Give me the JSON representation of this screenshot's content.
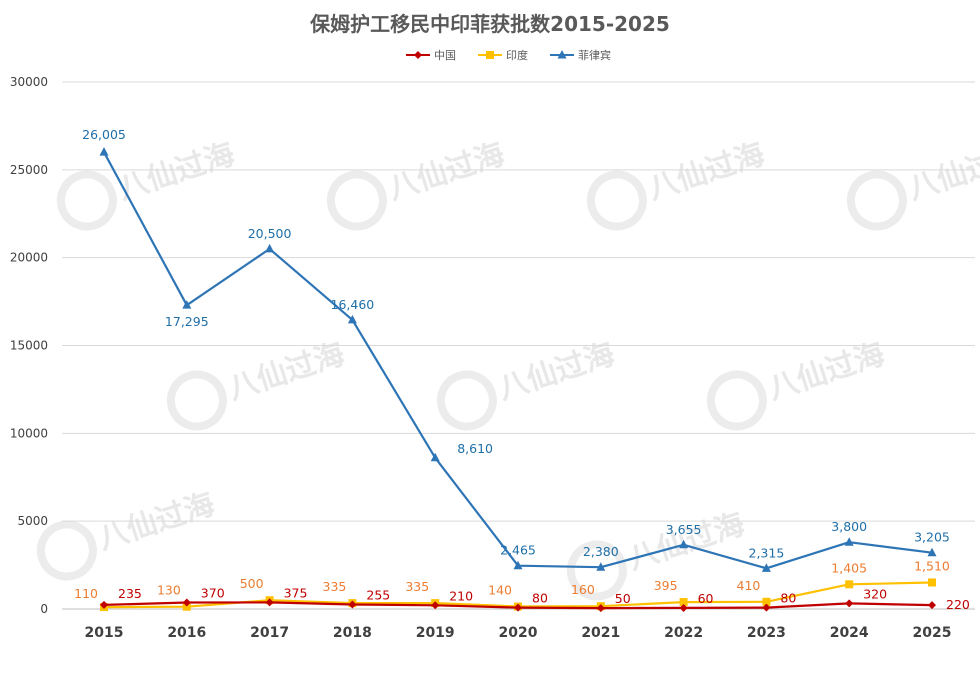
{
  "chart_data": {
    "type": "line",
    "title": "保姆护工移民中印菲获批数2015-2025",
    "categories": [
      "2015",
      "2016",
      "2017",
      "2018",
      "2019",
      "2020",
      "2021",
      "2022",
      "2023",
      "2024",
      "2025"
    ],
    "ylim": [
      0,
      30000
    ],
    "yticks": [
      0,
      5000,
      10000,
      15000,
      20000,
      25000,
      30000
    ],
    "grid": "horizontal",
    "legend_position": "top",
    "series": [
      {
        "name": "中国",
        "color": "#c00000",
        "marker": "diamond",
        "values": [
          235,
          370,
          375,
          255,
          210,
          80,
          50,
          60,
          80,
          320,
          220
        ],
        "labels": [
          "235",
          "370",
          "375",
          "255",
          "210",
          "80",
          "50",
          "60",
          "80",
          "320",
          "220"
        ]
      },
      {
        "name": "印度",
        "color": "#ffc000",
        "label_color": "#ed7d31",
        "marker": "square",
        "values": [
          110,
          130,
          500,
          335,
          335,
          140,
          160,
          395,
          410,
          1405,
          1510
        ],
        "labels": [
          "110",
          "130",
          "500",
          "335",
          "335",
          "140",
          "160",
          "395",
          "410",
          "1,405",
          "1,510"
        ]
      },
      {
        "name": "菲律宾",
        "color": "#2e75b6",
        "label_color": "#1f6fa8",
        "marker": "triangle",
        "values": [
          26005,
          17295,
          20500,
          16460,
          8610,
          2465,
          2380,
          3655,
          2315,
          3800,
          3205
        ],
        "labels": [
          "26,005",
          "17,295",
          "20,500",
          "16,460",
          "8,610",
          "2,465",
          "2,380",
          "3,655",
          "2,315",
          "3,800",
          "3,205"
        ]
      }
    ]
  },
  "watermark": {
    "text": "八仙过海"
  }
}
